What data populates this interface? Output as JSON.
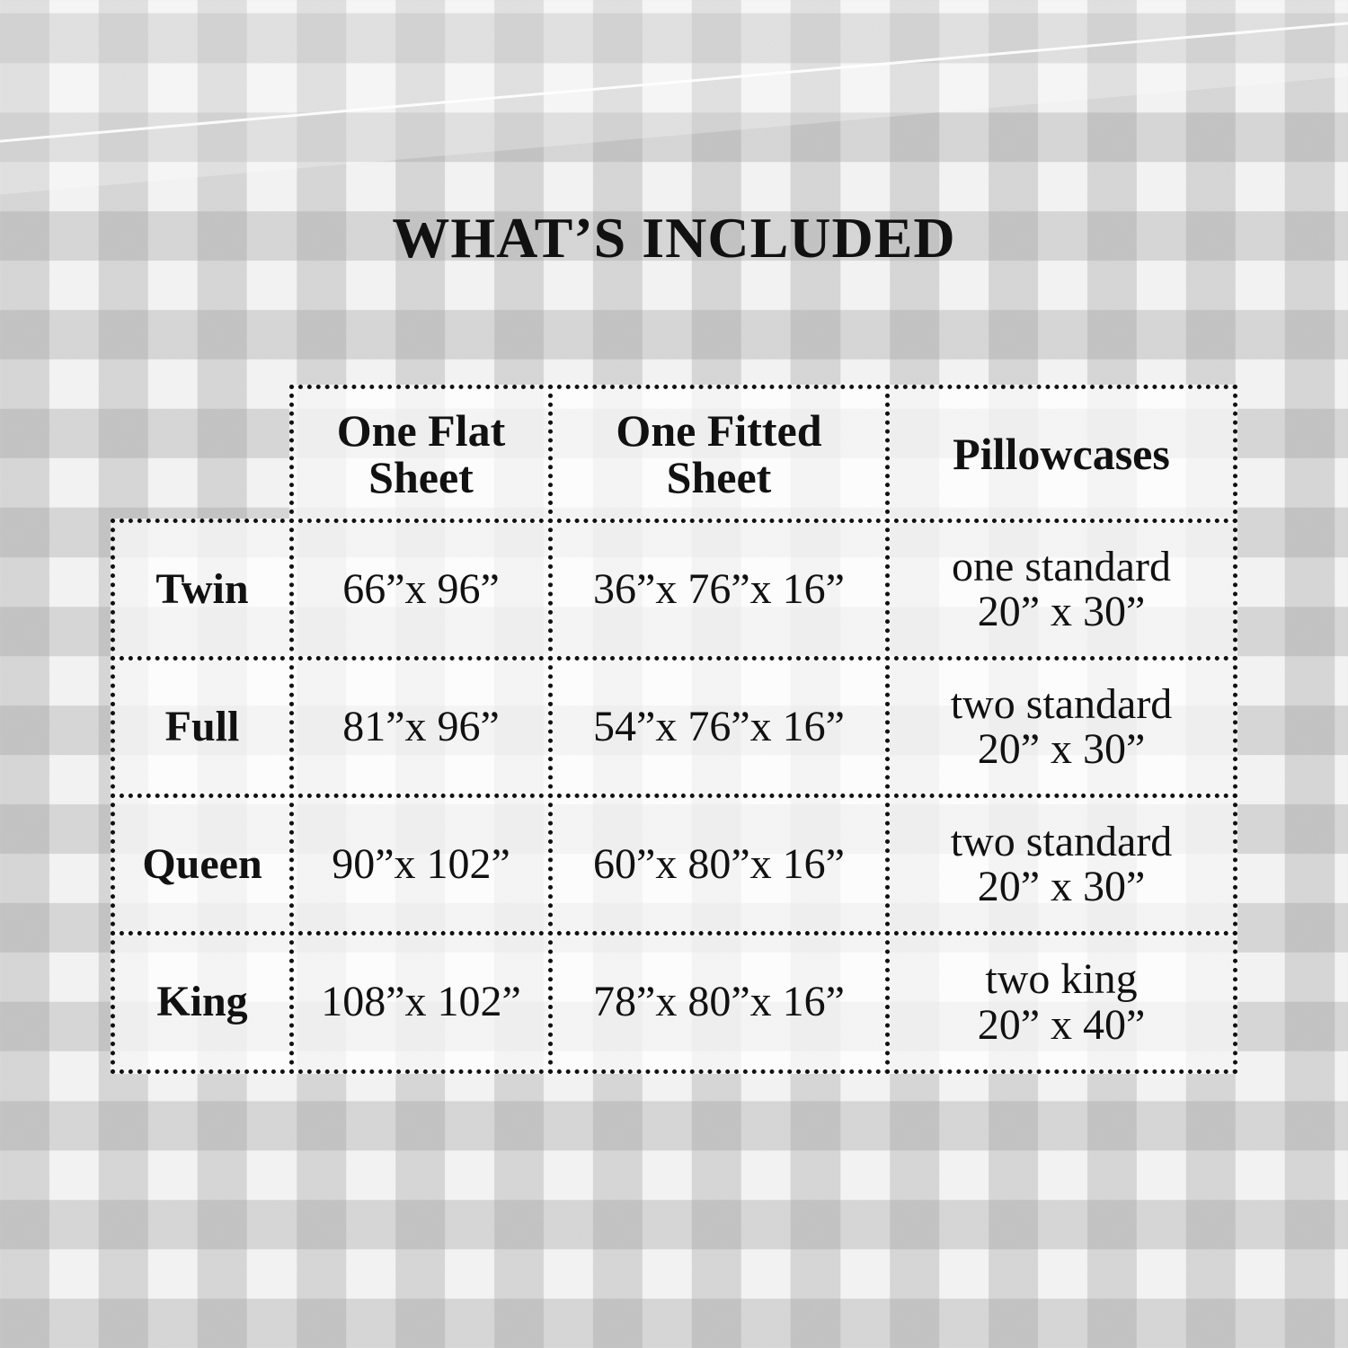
{
  "title": "WHAT’S INCLUDED",
  "table": {
    "headers": [
      [
        "One Flat",
        "Sheet"
      ],
      [
        "One Fitted",
        "Sheet"
      ],
      [
        "Pillowcases"
      ]
    ],
    "rows": [
      {
        "size": "Twin",
        "flat": "66”x 96”",
        "fitted": "36”x 76”x 16”",
        "pillow": [
          "one standard",
          "20” x 30”"
        ]
      },
      {
        "size": "Full",
        "flat": "81”x 96”",
        "fitted": "54”x 76”x 16”",
        "pillow": [
          "two standard",
          "20” x 30”"
        ]
      },
      {
        "size": "Queen",
        "flat": "90”x 102”",
        "fitted": "60”x 80”x 16”",
        "pillow": [
          "two standard",
          "20” x 30”"
        ]
      },
      {
        "size": "King",
        "flat": "108”x 102”",
        "fitted": "78”x 80”x 16”",
        "pillow": [
          "two king",
          "20” x 40”"
        ]
      }
    ]
  }
}
